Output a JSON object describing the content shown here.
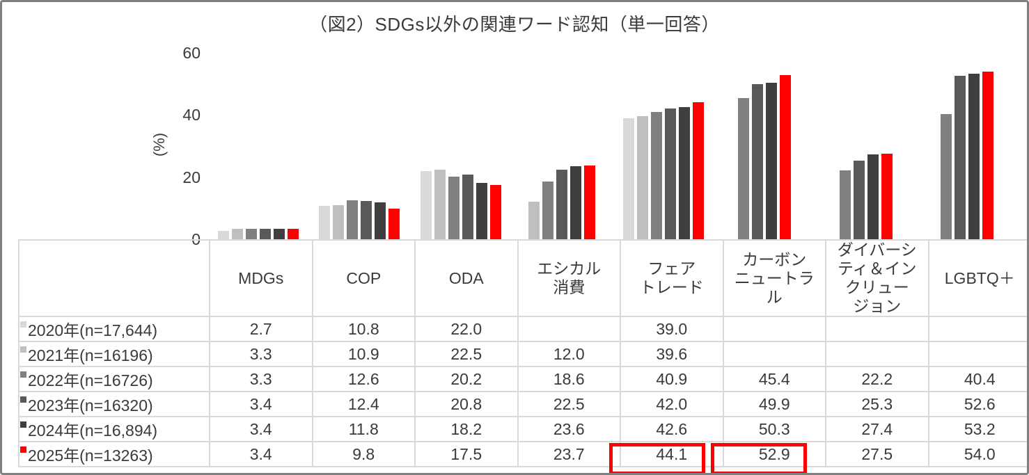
{
  "title": "（図2）SDGs以外の関連ワード認知（単一回答）",
  "y_axis": {
    "label": "(%)",
    "ticks": [
      60,
      40,
      20,
      0
    ],
    "max": 60
  },
  "chart_data": {
    "type": "bar",
    "title": "（図2）SDGs以外の関連ワード認知（単一回答）",
    "xlabel": "",
    "ylabel": "(%)",
    "ylim": [
      0,
      60
    ],
    "grid": false,
    "legend_position": "table-rows-left",
    "categories": [
      "MDGs",
      "COP",
      "ODA",
      "エシカル消費",
      "フェアトレード",
      "カーボンニュートラル",
      "ダイバーシティ＆インクリュージョン",
      "LGBTQ＋"
    ],
    "series": [
      {
        "name": "2020年(n=17,644)",
        "color": "#d9d9d9",
        "values": [
          2.7,
          10.8,
          22.0,
          null,
          39.0,
          null,
          null,
          null
        ]
      },
      {
        "name": "2021年(n=16196)",
        "color": "#bfbfbf",
        "values": [
          3.3,
          10.9,
          22.5,
          12.0,
          39.6,
          null,
          null,
          null
        ]
      },
      {
        "name": "2022年(n=16726)",
        "color": "#808080",
        "values": [
          3.3,
          12.6,
          20.2,
          18.6,
          40.9,
          45.4,
          22.2,
          40.4
        ]
      },
      {
        "name": "2023年(n=16320)",
        "color": "#595959",
        "values": [
          3.4,
          12.4,
          20.8,
          22.5,
          42.0,
          49.9,
          25.3,
          52.6
        ]
      },
      {
        "name": "2024年(n=16,894)",
        "color": "#3f3f3f",
        "values": [
          3.4,
          11.8,
          18.2,
          23.6,
          42.6,
          50.3,
          27.4,
          53.2
        ]
      },
      {
        "name": "2025年(n=13263)",
        "color": "#ff0000",
        "values": [
          3.4,
          9.8,
          17.5,
          23.7,
          44.1,
          52.9,
          27.5,
          54.0
        ]
      }
    ]
  },
  "table": {
    "col_headers": [
      "MDGs",
      "COP",
      "ODA",
      "エシカル\n消費",
      "フェア\nトレード",
      "カーボン\nニュートラ\nル",
      "ダイバーシ\nティ＆イン\nクリュー\nジョン",
      "LGBTQ＋"
    ],
    "rows": [
      {
        "label": "2020年(n=17,644)",
        "marker_color": "#d9d9d9",
        "values": [
          "2.7",
          "10.8",
          "22.0",
          "",
          "39.0",
          "",
          "",
          ""
        ]
      },
      {
        "label": "2021年(n=16196)",
        "marker_color": "#bfbfbf",
        "values": [
          "3.3",
          "10.9",
          "22.5",
          "12.0",
          "39.6",
          "",
          "",
          ""
        ]
      },
      {
        "label": "2022年(n=16726)",
        "marker_color": "#808080",
        "values": [
          "3.3",
          "12.6",
          "20.2",
          "18.6",
          "40.9",
          "45.4",
          "22.2",
          "40.4"
        ]
      },
      {
        "label": "2023年(n=16320)",
        "marker_color": "#595959",
        "values": [
          "3.4",
          "12.4",
          "20.8",
          "22.5",
          "42.0",
          "49.9",
          "25.3",
          "52.6"
        ]
      },
      {
        "label": "2024年(n=16,894)",
        "marker_color": "#3f3f3f",
        "values": [
          "3.4",
          "11.8",
          "18.2",
          "23.6",
          "42.6",
          "50.3",
          "27.4",
          "53.2"
        ]
      },
      {
        "label": "2025年(n=13263)",
        "marker_color": "#ff0000",
        "values": [
          "3.4",
          "9.8",
          "17.5",
          "23.7",
          "44.1",
          "52.9",
          "27.5",
          "54.0"
        ],
        "highlighted_columns": [
          4,
          5
        ]
      }
    ],
    "highlight_color": "#ff0000"
  }
}
